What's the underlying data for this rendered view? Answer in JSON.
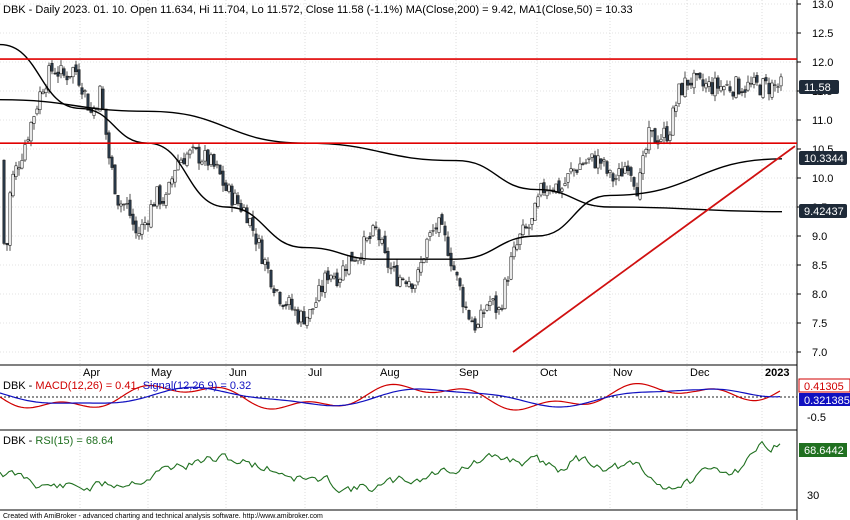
{
  "colors": {
    "up": "#1a1a1a",
    "down": "#2a3a4a",
    "ma200": "#000000",
    "ma50": "#000000",
    "resistance": "#e00000",
    "trend": "#d01010",
    "macd": "#d00000",
    "signal": "#1010c0",
    "rsi": "#207020",
    "grid": "#c8c8c8",
    "price_tag": "#1e2a38"
  },
  "header": {
    "ticker": "DBK",
    "summary": "DBK - Daily 2023. 01. 10. Open 11.634, Hi 11.704, Lo 11.572, Close 11.58 (-1.1%) MA(Close,200) = 9.42, MA1(Close,50) = 10.33"
  },
  "macd_header": {
    "prefix": "DBK - ",
    "macd": "MACD(12,26) = 0.41, ",
    "signal": "Signal(12,26,9) = 0.32"
  },
  "rsi_header": {
    "prefix": "DBK - ",
    "rsi": "RSI(15) = 68.64"
  },
  "tags": {
    "close": "11.58",
    "ma50": "10.3344",
    "ma200": "9.42437",
    "macd": "0.41305",
    "signal": "0.321385",
    "rsi": "68.6442"
  },
  "footer": "Created with AmiBroker - advanced charting and technical analysis software. http://www.amibroker.com",
  "chart_data": [
    {
      "type": "candlestick",
      "title": "DBK - Daily",
      "x_labels": [
        "Apr",
        "May",
        "Jun",
        "Jul",
        "Aug",
        "Sep",
        "Oct",
        "Nov",
        "Dec",
        "2023"
      ],
      "y_ticks": [
        "13.0",
        "12.5",
        "12.0",
        "11.5",
        "11.0",
        "10.5",
        "10.0",
        "9.5",
        "9.0",
        "8.5",
        "8.0",
        "7.5",
        "7.0"
      ],
      "ylim": [
        6.8,
        13.0
      ],
      "grid": true,
      "horizontal_lines": [
        12.05,
        10.6
      ],
      "trendline": {
        "start": [
          "late Sep",
          7.0
        ],
        "end": [
          "Jan",
          10.55
        ]
      },
      "price_anchors": [
        [
          "Mar 01",
          10.3
        ],
        [
          "Mar 03",
          8.4
        ],
        [
          "Mar 05",
          9.9
        ],
        [
          "Mar 09",
          10.4
        ],
        [
          "Mar 13",
          11.0
        ],
        [
          "Mar 17",
          11.6
        ],
        [
          "Mar 21",
          11.9
        ],
        [
          "Mar 25",
          11.75
        ],
        [
          "Mar 29",
          11.9
        ],
        [
          "Apr 02",
          11.6
        ],
        [
          "Apr 06",
          11.1
        ],
        [
          "Apr 10",
          11.5
        ],
        [
          "Apr 14",
          10.3
        ],
        [
          "Apr 18",
          9.6
        ],
        [
          "Apr 22",
          9.5
        ],
        [
          "Apr 26",
          9.0
        ],
        [
          "Apr 30",
          9.25
        ],
        [
          "May 04",
          9.7
        ],
        [
          "May 08",
          9.6
        ],
        [
          "May 12",
          10.3
        ],
        [
          "May 16",
          10.4
        ],
        [
          "May 20",
          10.4
        ],
        [
          "May 24",
          10.3
        ],
        [
          "May 28",
          10.1
        ],
        [
          "Jun 01",
          9.8
        ],
        [
          "Jun 05",
          9.6
        ],
        [
          "Jun 09",
          9.4
        ],
        [
          "Jun 13",
          8.9
        ],
        [
          "Jun 17",
          8.4
        ],
        [
          "Jun 21",
          8.0
        ],
        [
          "Jun 25",
          7.8
        ],
        [
          "Jun 29",
          7.6
        ],
        [
          "Jul 03",
          7.65
        ],
        [
          "Jul 07",
          8.0
        ],
        [
          "Jul 11",
          8.4
        ],
        [
          "Jul 15",
          8.3
        ],
        [
          "Jul 19",
          8.6
        ],
        [
          "Jul 23",
          8.7
        ],
        [
          "Jul 27",
          8.9
        ],
        [
          "Jul 31",
          9.1
        ],
        [
          "Aug 04",
          8.6
        ],
        [
          "Aug 08",
          8.3
        ],
        [
          "Aug 12",
          8.3
        ],
        [
          "Aug 16",
          8.2
        ],
        [
          "Aug 20",
          8.9
        ],
        [
          "Aug 24",
          9.2
        ],
        [
          "Aug 28",
          8.8
        ],
        [
          "Sep 01",
          8.3
        ],
        [
          "Sep 05",
          7.7
        ],
        [
          "Sep 09",
          7.4
        ],
        [
          "Sep 13",
          7.9
        ],
        [
          "Sep 17",
          7.7
        ],
        [
          "Sep 21",
          8.5
        ],
        [
          "Sep 25",
          9.0
        ],
        [
          "Sep 29",
          9.2
        ],
        [
          "Oct 03",
          9.8
        ],
        [
          "Oct 07",
          9.9
        ],
        [
          "Oct 11",
          9.8
        ],
        [
          "Oct 15",
          10.1
        ],
        [
          "Oct 19",
          10.25
        ],
        [
          "Oct 23",
          10.3
        ],
        [
          "Oct 27",
          10.3
        ],
        [
          "Oct 31",
          10.0
        ],
        [
          "Nov 04",
          10.0
        ],
        [
          "Nov 08",
          10.3
        ],
        [
          "Nov 12",
          9.8
        ],
        [
          "Nov 16",
          10.7
        ],
        [
          "Nov 20",
          10.7
        ],
        [
          "Nov 24",
          10.8
        ],
        [
          "Nov 28",
          11.5
        ],
        [
          "Dec 02",
          11.7
        ],
        [
          "Dec 06",
          11.58
        ]
      ],
      "ma200_anchors": [
        [
          "Mar",
          11.35
        ],
        [
          "May",
          11.15
        ],
        [
          "Jul",
          10.6
        ],
        [
          "Sep",
          10.3
        ],
        [
          "Oct",
          9.8
        ],
        [
          "Nov",
          9.5
        ],
        [
          "Dec",
          9.42
        ]
      ],
      "ma50_anchors": [
        [
          "Mar",
          12.3
        ],
        [
          "Apr",
          11.2
        ],
        [
          "May",
          10.6
        ],
        [
          "Jun",
          9.5
        ],
        [
          "Jul",
          8.8
        ],
        [
          "Aug",
          8.6
        ],
        [
          "Sep",
          8.6
        ],
        [
          "Oct",
          9.0
        ],
        [
          "Nov",
          9.7
        ],
        [
          "Dec",
          10.33
        ]
      ]
    },
    {
      "type": "line",
      "title": "MACD(12,26) / Signal(12,26,9)",
      "y_ticks": [
        "-0.5"
      ],
      "series": [
        {
          "name": "MACD(12,26)",
          "last": 0.41
        },
        {
          "name": "Signal(12,26,9)",
          "last": 0.32
        }
      ]
    },
    {
      "type": "line",
      "title": "RSI(15)",
      "y_ticks": [
        "30"
      ],
      "series": [
        {
          "name": "RSI(15)",
          "last": 68.64
        }
      ]
    }
  ]
}
